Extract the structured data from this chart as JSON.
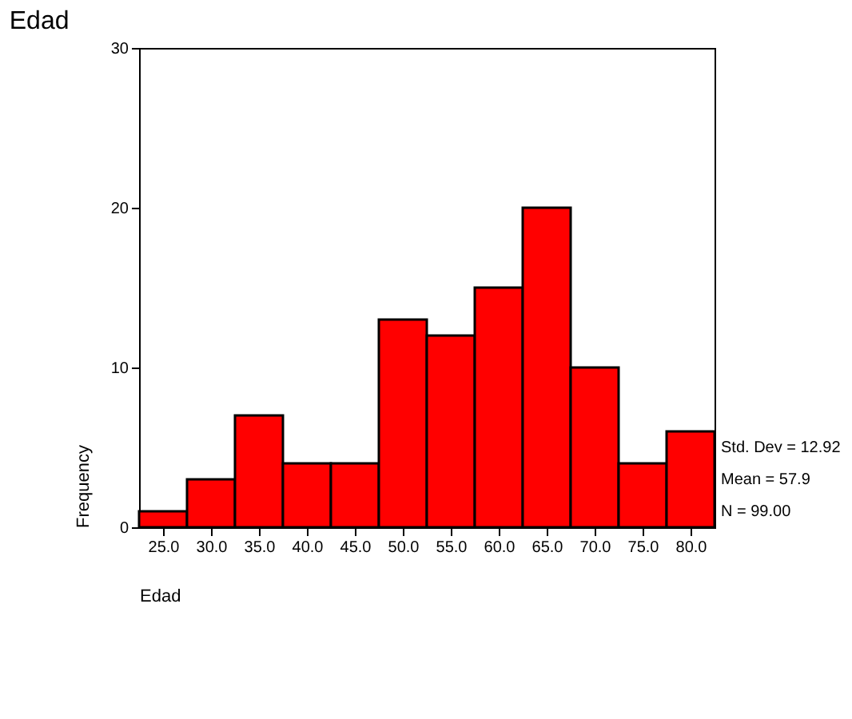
{
  "chart_data": {
    "type": "histogram",
    "title": "Edad",
    "xlabel": "Edad",
    "ylabel": "Frequency",
    "bins": [
      22.5,
      27.5,
      32.5,
      37.5,
      42.5,
      47.5,
      52.5,
      57.5,
      62.5,
      67.5,
      72.5,
      77.5,
      82.5
    ],
    "values": [
      1,
      3,
      7,
      4,
      4,
      13,
      12,
      15,
      20,
      10,
      4,
      6
    ],
    "color": "#ff0000",
    "xlim": [
      22.5,
      82.5
    ],
    "xticks": [
      {
        "value": 25,
        "label": "25.0"
      },
      {
        "value": 30,
        "label": "30.0"
      },
      {
        "value": 35,
        "label": "35.0"
      },
      {
        "value": 40,
        "label": "40.0"
      },
      {
        "value": 45,
        "label": "45.0"
      },
      {
        "value": 50,
        "label": "50.0"
      },
      {
        "value": 55,
        "label": "55.0"
      },
      {
        "value": 60,
        "label": "60.0"
      },
      {
        "value": 65,
        "label": "65.0"
      },
      {
        "value": 70,
        "label": "70.0"
      },
      {
        "value": 75,
        "label": "75.0"
      },
      {
        "value": 80,
        "label": "80.0"
      }
    ],
    "ylim": [
      0,
      30
    ],
    "yticks": [
      0,
      10,
      20,
      30
    ],
    "grid": false,
    "annotations": [
      "Std. Dev = 12.92",
      "Mean = 57.9",
      "N = 99.00"
    ]
  }
}
